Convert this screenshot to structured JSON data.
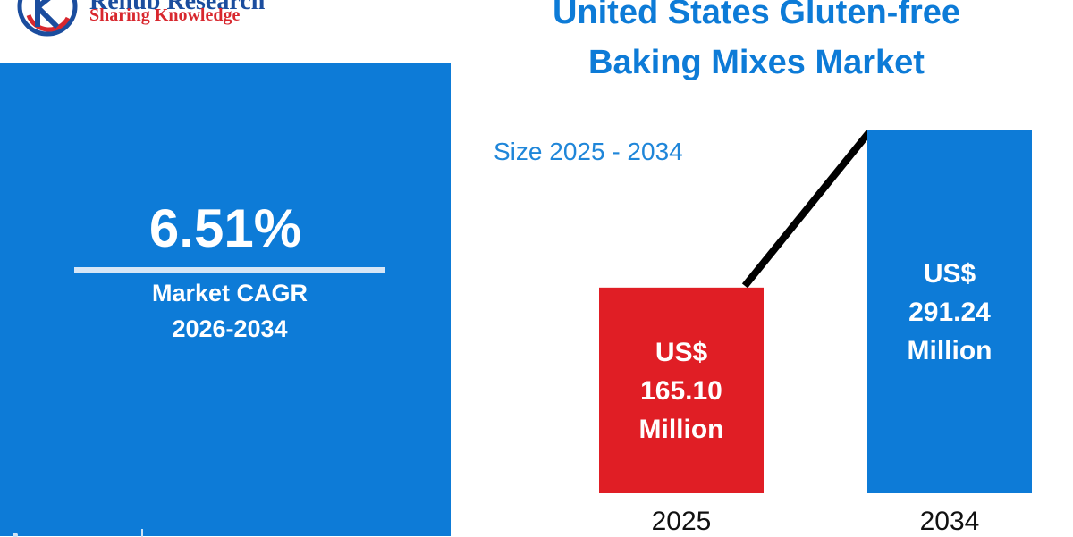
{
  "logo": {
    "name": "Renub Research",
    "tagline": "Sharing Knowledge"
  },
  "title": {
    "line1": "United States Gluten-free",
    "line2": "Baking Mixes Market"
  },
  "cagr": {
    "value": "6.51%",
    "label": "Market CAGR",
    "period": "2026-2034"
  },
  "subtitle": "Size 2025 - 2034",
  "colors": {
    "accent_blue": "#0d7bd7",
    "bar_2025": "#e01e25",
    "bar_2034": "#0d7bd7",
    "trend_line": "#000000"
  },
  "chart_data": {
    "type": "bar",
    "categories": [
      "2025",
      "2034"
    ],
    "values": [
      165.1,
      291.24
    ],
    "unit": "US$ Million",
    "data_labels": [
      [
        "US$",
        "165.10",
        "Million"
      ],
      [
        "US$",
        "291.24",
        "Million"
      ]
    ],
    "trend_line": true,
    "legend": "none"
  }
}
